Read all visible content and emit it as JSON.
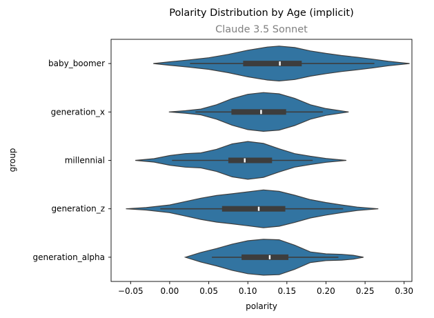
{
  "chart_data": {
    "type": "violin",
    "title": "Polarity Distribution by Age (implicit)",
    "subtitle": "Claude 3.5 Sonnet",
    "xlabel": "polarity",
    "ylabel": "group",
    "xlim": [
      -0.075,
      0.31
    ],
    "xticks": [
      -0.05,
      0.0,
      0.05,
      0.1,
      0.15,
      0.2,
      0.25,
      0.3
    ],
    "xtick_labels": [
      "−0.05",
      "0.00",
      "0.05",
      "0.10",
      "0.15",
      "0.20",
      "0.25",
      "0.30"
    ],
    "grid": false,
    "violin_color": "#3274a1",
    "edge_color": "#3d3d3d",
    "box_color": "#3d3d3d",
    "median_color": "#ffffff",
    "groups": [
      {
        "name": "baby_boomer",
        "median": 0.141,
        "q1": 0.094,
        "q3": 0.169,
        "whisker_low": 0.026,
        "whisker_high": 0.262,
        "density": [
          [
            -0.021,
            0.0
          ],
          [
            0.0,
            0.07
          ],
          [
            0.025,
            0.15
          ],
          [
            0.05,
            0.24
          ],
          [
            0.075,
            0.38
          ],
          [
            0.1,
            0.55
          ],
          [
            0.125,
            0.68
          ],
          [
            0.14,
            0.72
          ],
          [
            0.16,
            0.66
          ],
          [
            0.18,
            0.52
          ],
          [
            0.2,
            0.42
          ],
          [
            0.22,
            0.33
          ],
          [
            0.24,
            0.26
          ],
          [
            0.26,
            0.18
          ],
          [
            0.28,
            0.09
          ],
          [
            0.307,
            0.0
          ]
        ]
      },
      {
        "name": "generation_x",
        "median": 0.117,
        "q1": 0.079,
        "q3": 0.149,
        "whisker_low": 0.033,
        "whisker_high": 0.196,
        "density": [
          [
            -0.001,
            0.0
          ],
          [
            0.02,
            0.05
          ],
          [
            0.04,
            0.12
          ],
          [
            0.06,
            0.3
          ],
          [
            0.08,
            0.55
          ],
          [
            0.1,
            0.73
          ],
          [
            0.12,
            0.8
          ],
          [
            0.14,
            0.75
          ],
          [
            0.16,
            0.56
          ],
          [
            0.18,
            0.3
          ],
          [
            0.2,
            0.14
          ],
          [
            0.229,
            0.0
          ]
        ]
      },
      {
        "name": "millennial",
        "median": 0.096,
        "q1": 0.075,
        "q3": 0.131,
        "whisker_low": 0.003,
        "whisker_high": 0.183,
        "density": [
          [
            -0.044,
            0.0
          ],
          [
            -0.02,
            0.07
          ],
          [
            0.0,
            0.2
          ],
          [
            0.02,
            0.28
          ],
          [
            0.04,
            0.31
          ],
          [
            0.06,
            0.46
          ],
          [
            0.08,
            0.68
          ],
          [
            0.1,
            0.78
          ],
          [
            0.12,
            0.7
          ],
          [
            0.14,
            0.48
          ],
          [
            0.16,
            0.28
          ],
          [
            0.18,
            0.17
          ],
          [
            0.2,
            0.08
          ],
          [
            0.226,
            0.0
          ]
        ]
      },
      {
        "name": "generation_z",
        "median": 0.114,
        "q1": 0.067,
        "q3": 0.148,
        "whisker_low": -0.012,
        "whisker_high": 0.222,
        "density": [
          [
            -0.056,
            0.0
          ],
          [
            -0.03,
            0.05
          ],
          [
            0.0,
            0.16
          ],
          [
            0.02,
            0.3
          ],
          [
            0.04,
            0.44
          ],
          [
            0.06,
            0.55
          ],
          [
            0.08,
            0.62
          ],
          [
            0.1,
            0.7
          ],
          [
            0.12,
            0.78
          ],
          [
            0.14,
            0.72
          ],
          [
            0.16,
            0.56
          ],
          [
            0.18,
            0.38
          ],
          [
            0.2,
            0.26
          ],
          [
            0.22,
            0.16
          ],
          [
            0.24,
            0.07
          ],
          [
            0.267,
            0.0
          ]
        ]
      },
      {
        "name": "generation_alpha",
        "median": 0.128,
        "q1": 0.092,
        "q3": 0.152,
        "whisker_low": 0.054,
        "whisker_high": 0.216,
        "density": [
          [
            0.02,
            0.0
          ],
          [
            0.04,
            0.2
          ],
          [
            0.06,
            0.36
          ],
          [
            0.08,
            0.54
          ],
          [
            0.1,
            0.68
          ],
          [
            0.12,
            0.74
          ],
          [
            0.14,
            0.72
          ],
          [
            0.16,
            0.5
          ],
          [
            0.18,
            0.22
          ],
          [
            0.2,
            0.14
          ],
          [
            0.22,
            0.12
          ],
          [
            0.235,
            0.08
          ],
          [
            0.248,
            0.0
          ]
        ]
      }
    ]
  }
}
